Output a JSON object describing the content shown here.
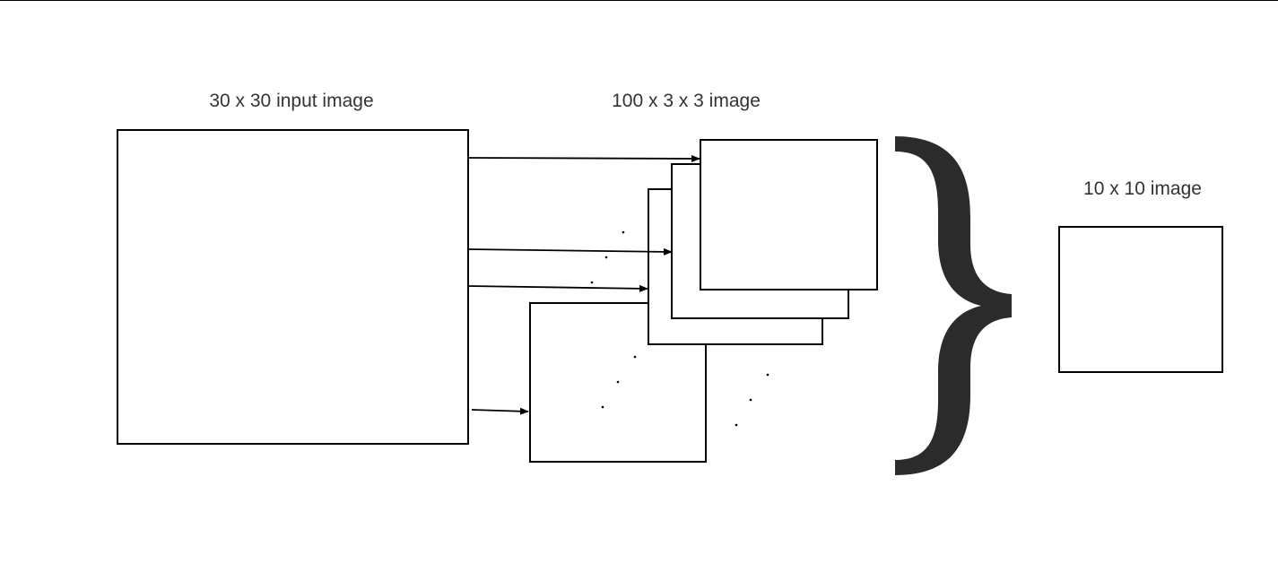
{
  "labels": {
    "input": "30 x 30 input image",
    "stack": "100 x 3 x 3 image",
    "output": "10 x 10 image"
  },
  "colors": {
    "stroke": "#000000",
    "text": "#333333",
    "brace": "#2b2b2b",
    "background": "#ffffff"
  }
}
